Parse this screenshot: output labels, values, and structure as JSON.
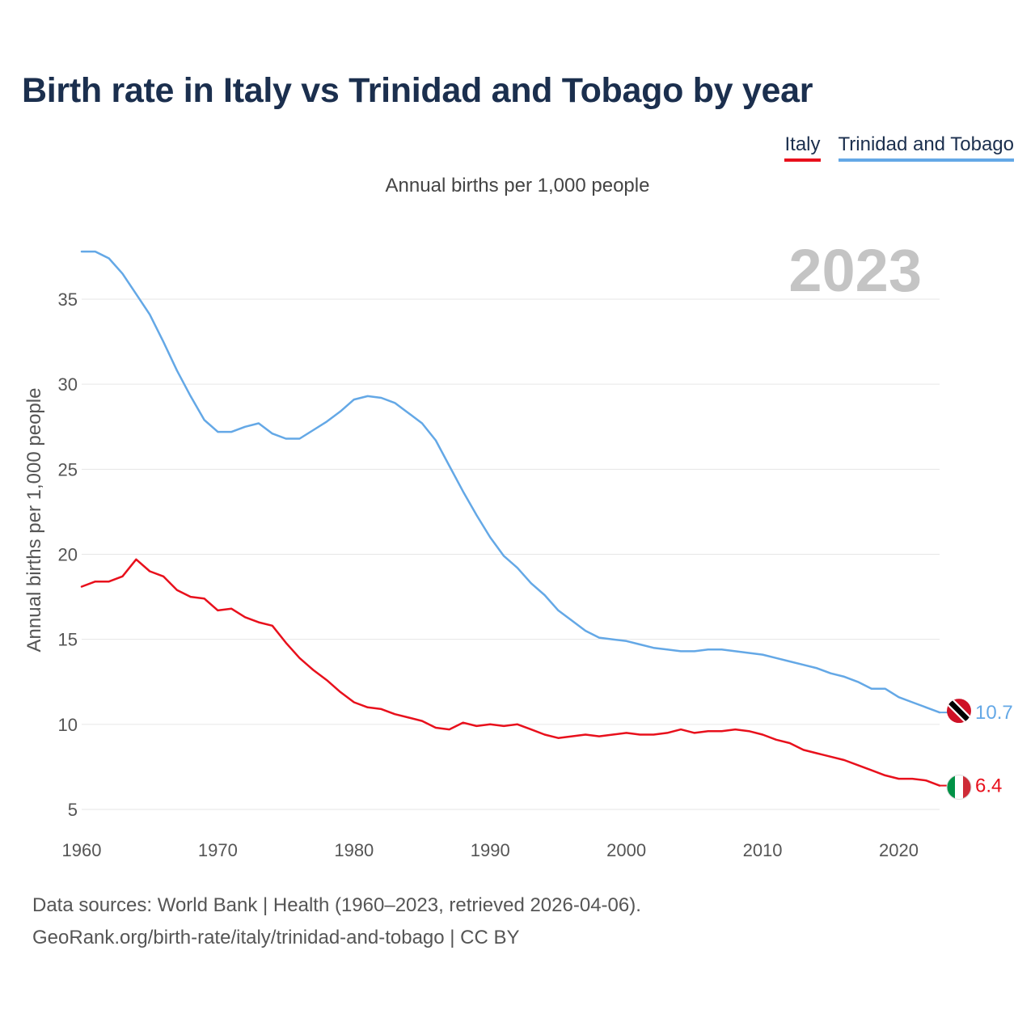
{
  "chart_data": {
    "type": "line",
    "title": "Birth rate in Italy vs Trinidad and Tobago by year",
    "subtitle": "Annual births per 1,000 people",
    "ylabel": "Annual births per 1,000 people",
    "xlabel": "",
    "xlim": [
      1960,
      2023
    ],
    "ylim": [
      5,
      38
    ],
    "x_ticks": [
      1960,
      1970,
      1980,
      1990,
      2000,
      2010,
      2020
    ],
    "y_ticks": [
      5,
      10,
      15,
      20,
      25,
      30,
      35
    ],
    "current_year": "2023",
    "legend_position": "top-right",
    "x": [
      1960,
      1961,
      1962,
      1963,
      1964,
      1965,
      1966,
      1967,
      1968,
      1969,
      1970,
      1971,
      1972,
      1973,
      1974,
      1975,
      1976,
      1977,
      1978,
      1979,
      1980,
      1981,
      1982,
      1983,
      1984,
      1985,
      1986,
      1987,
      1988,
      1989,
      1990,
      1991,
      1992,
      1993,
      1994,
      1995,
      1996,
      1997,
      1998,
      1999,
      2000,
      2001,
      2002,
      2003,
      2004,
      2005,
      2006,
      2007,
      2008,
      2009,
      2010,
      2011,
      2012,
      2013,
      2014,
      2015,
      2016,
      2017,
      2018,
      2019,
      2020,
      2021,
      2022,
      2023
    ],
    "series": [
      {
        "name": "Italy",
        "color": "#e8101c",
        "flag": "italy-flag",
        "end_label": "6.4",
        "values": [
          18.1,
          18.4,
          18.4,
          18.7,
          19.7,
          19.0,
          18.7,
          17.9,
          17.5,
          17.4,
          16.7,
          16.8,
          16.3,
          16.0,
          15.8,
          14.8,
          13.9,
          13.2,
          12.6,
          11.9,
          11.3,
          11.0,
          10.9,
          10.6,
          10.4,
          10.2,
          9.8,
          9.7,
          10.1,
          9.9,
          10.0,
          9.9,
          10.0,
          9.7,
          9.4,
          9.2,
          9.3,
          9.4,
          9.3,
          9.4,
          9.5,
          9.4,
          9.4,
          9.5,
          9.7,
          9.5,
          9.6,
          9.6,
          9.7,
          9.6,
          9.4,
          9.1,
          8.9,
          8.5,
          8.3,
          8.1,
          7.9,
          7.6,
          7.3,
          7.0,
          6.8,
          6.8,
          6.7,
          6.4
        ]
      },
      {
        "name": "Trinidad and Tobago",
        "color": "#64a8e6",
        "flag": "trinidad-and-tobago-flag",
        "end_label": "10.7",
        "values": [
          37.8,
          37.8,
          37.4,
          36.5,
          35.3,
          34.1,
          32.5,
          30.8,
          29.3,
          27.9,
          27.2,
          27.2,
          27.5,
          27.7,
          27.1,
          26.8,
          26.8,
          27.3,
          27.8,
          28.4,
          29.1,
          29.3,
          29.2,
          28.9,
          28.3,
          27.7,
          26.7,
          25.2,
          23.7,
          22.3,
          21.0,
          19.9,
          19.2,
          18.3,
          17.6,
          16.7,
          16.1,
          15.5,
          15.1,
          15.0,
          14.9,
          14.7,
          14.5,
          14.4,
          14.3,
          14.3,
          14.4,
          14.4,
          14.3,
          14.2,
          14.1,
          13.9,
          13.7,
          13.5,
          13.3,
          13.0,
          12.8,
          12.5,
          12.1,
          12.1,
          11.6,
          11.3,
          11.0,
          10.7
        ]
      }
    ]
  },
  "footer": {
    "line1": "Data sources: World Bank | Health (1960–2023, retrieved 2026-04-06).",
    "line2": "GeoRank.org/birth-rate/italy/trinidad-and-tobago | CC BY"
  }
}
